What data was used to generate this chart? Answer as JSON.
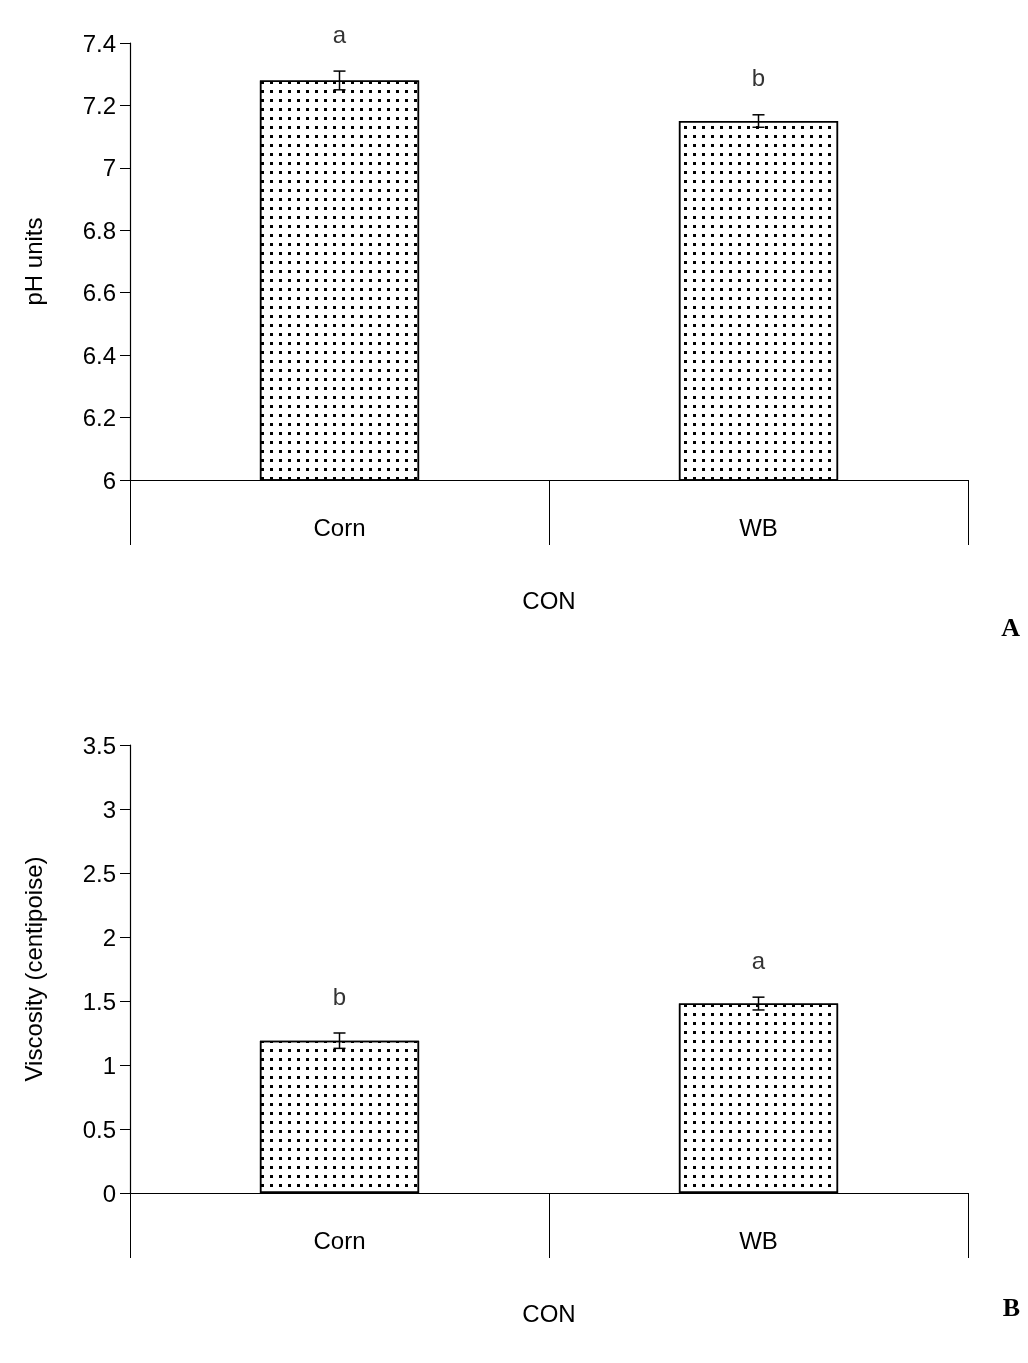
{
  "chart_data": [
    {
      "type": "bar",
      "ylabel": "pH units",
      "xlabel": "CON",
      "categories": [
        "Corn",
        "WB"
      ],
      "series": [
        {
          "color": "#ffffff",
          "values": [
            7.28,
            7.15
          ],
          "errors": [
            0.03,
            0.02
          ]
        }
      ],
      "ylim": [
        6,
        7.4
      ],
      "yticks": [
        6,
        6.2,
        6.4,
        6.6,
        6.8,
        7,
        7.2,
        7.4
      ],
      "annotations": [
        {
          "text": "a",
          "x": "Corn",
          "y": 7.31
        },
        {
          "text": "b",
          "x": "WB",
          "y": 7.17
        },
        "A"
      ]
    },
    {
      "type": "bar",
      "ylabel": "Viscosity (centipoise)",
      "xlabel": "CON",
      "categories": [
        "Corn",
        "WB"
      ],
      "series": [
        {
          "color": "#ffffff",
          "values": [
            1.19,
            1.48
          ],
          "errors": [
            0.06,
            0.05
          ]
        }
      ],
      "ylim": [
        0,
        3.5
      ],
      "yticks": [
        0,
        0.5,
        1,
        1.5,
        2,
        2.5,
        3,
        3.5
      ],
      "annotations": [
        {
          "text": "b",
          "x": "Corn",
          "y": 1.25
        },
        {
          "text": "a",
          "x": "WB",
          "y": 1.53
        },
        "B"
      ]
    }
  ]
}
